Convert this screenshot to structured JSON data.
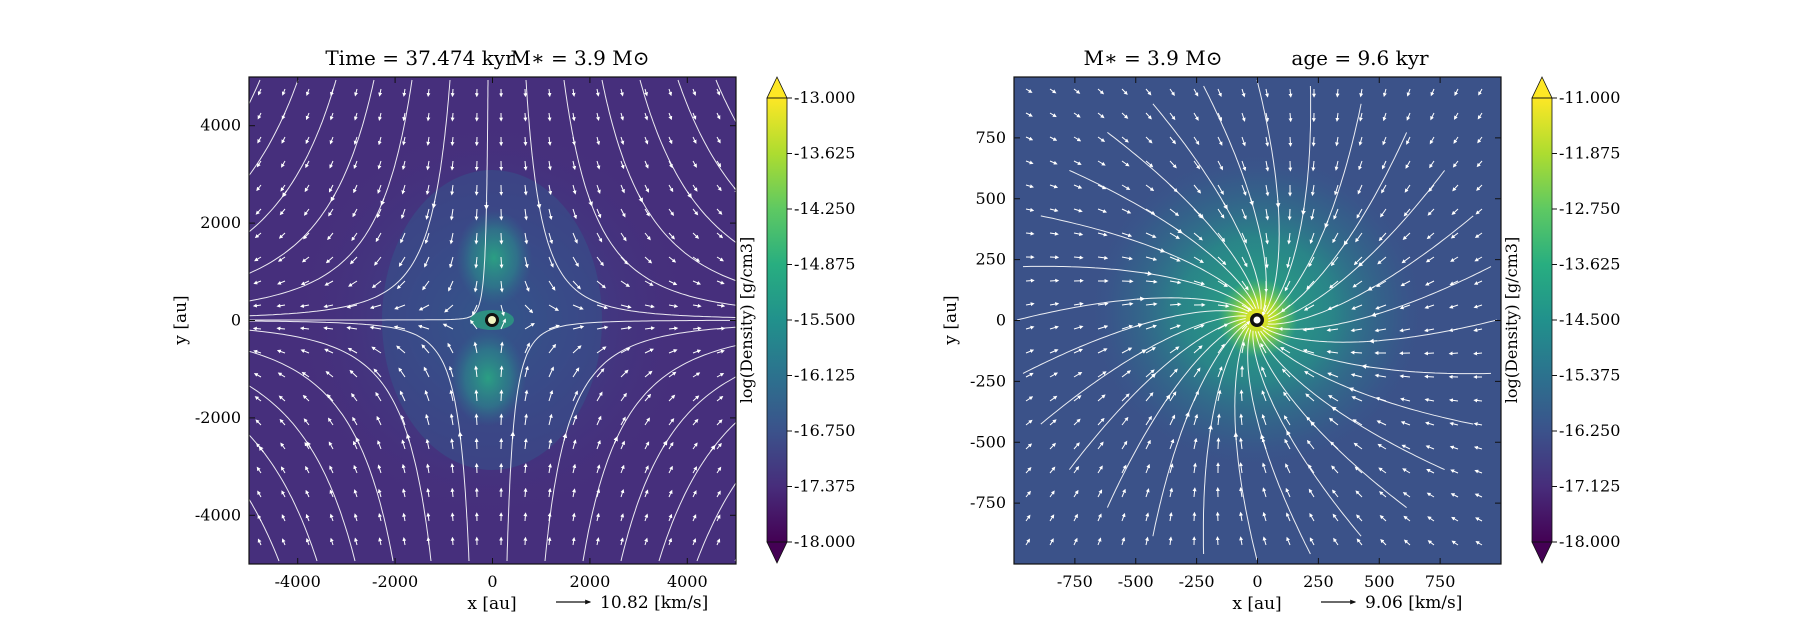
{
  "chart_data": [
    {
      "type": "heatmap",
      "title_left": "Time = 37.474 kyr",
      "title_right": "M∗ = 3.9 M⊙",
      "xlabel": "x [au]",
      "ylabel": "y [au]",
      "xlim": [
        -5000,
        5000
      ],
      "ylim": [
        -5000,
        5000
      ],
      "xticks": [
        -4000,
        -2000,
        0,
        2000,
        4000
      ],
      "xtick_labels": [
        "-4000",
        "-2000",
        "0",
        "2000",
        "4000"
      ],
      "yticks": [
        -4000,
        -2000,
        0,
        2000,
        4000
      ],
      "ytick_labels": [
        "-4000",
        "-2000",
        "0",
        "2000",
        "4000"
      ],
      "colorbar": {
        "label": "log(Density) [g/cm3]",
        "min": -18.0,
        "max": -13.0,
        "tick_labels": [
          "-13.000",
          "-13.625",
          "-14.250",
          "-14.875",
          "-15.500",
          "-16.125",
          "-16.750",
          "-17.375",
          "-18.000"
        ]
      },
      "velocity_key": {
        "label": "10.82 [km/s]"
      },
      "overlay": "streamlines + velocity arrows",
      "star_position": [
        0,
        0
      ]
    },
    {
      "type": "heatmap",
      "title_left": "M∗ = 3.9 M⊙",
      "title_right": "age = 9.6 kyr",
      "xlabel": "x [au]",
      "ylabel": "y [au]",
      "xlim": [
        -1000,
        1000
      ],
      "ylim": [
        -1000,
        1000
      ],
      "xticks": [
        -750,
        -500,
        -250,
        0,
        250,
        500,
        750
      ],
      "xtick_labels": [
        "-750",
        "-500",
        "-250",
        "0",
        "250",
        "500",
        "750"
      ],
      "yticks": [
        750,
        500,
        250,
        0,
        -250,
        -500,
        -750
      ],
      "ytick_labels": [
        "750",
        "500",
        "250",
        "0",
        "-250",
        "-500",
        "-750"
      ],
      "colorbar": {
        "label": "log(Density) [g/cm3]",
        "min": -18.0,
        "max": -11.0,
        "tick_labels": [
          "-11.000",
          "-11.875",
          "-12.750",
          "-13.625",
          "-14.500",
          "-15.375",
          "-16.250",
          "-17.125",
          "-18.000"
        ]
      },
      "velocity_key": {
        "label": "9.06 [km/s]"
      },
      "overlay": "streamlines + velocity arrows",
      "star_position": [
        0,
        0
      ]
    }
  ]
}
